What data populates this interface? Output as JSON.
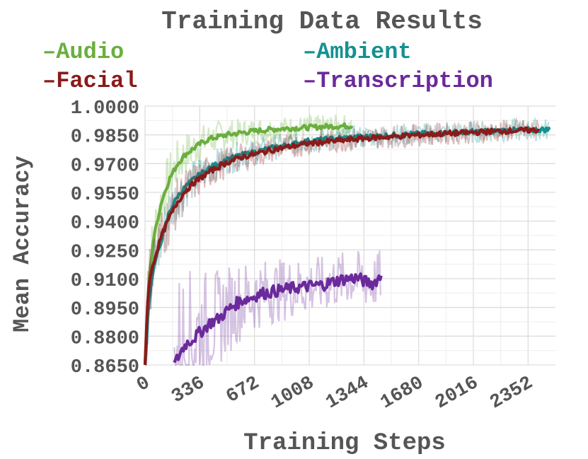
{
  "chart_data": {
    "type": "line",
    "title": "Training Data Results",
    "xlabel": "Training Steps",
    "ylabel": "Mean Accuracy",
    "xlim": [
      0,
      2520
    ],
    "ylim": [
      0.865,
      1.0
    ],
    "xticks": [
      0,
      336,
      672,
      1008,
      1344,
      1680,
      2016,
      2352
    ],
    "xtick_labels": [
      "0",
      "336",
      "672",
      "1008",
      "1344",
      "1680",
      "2016",
      "2352"
    ],
    "yticks": [
      1.0,
      0.985,
      0.97,
      0.955,
      0.94,
      0.925,
      0.91,
      0.895,
      0.88,
      0.865
    ],
    "ytick_labels": [
      "1.0000",
      "0.9850",
      "0.9700",
      "0.9550",
      "0.9400",
      "0.9250",
      "0.9100",
      "0.8950",
      "0.8800",
      "0.8650"
    ],
    "grid": true,
    "legend_position": "top, two columns",
    "series": [
      {
        "name": "Audio",
        "color": "#6aaf3d",
        "x": [
          0,
          20,
          50,
          100,
          150,
          200,
          250,
          300,
          350,
          400,
          450,
          500,
          600,
          700,
          800,
          900,
          1000,
          1100,
          1200,
          1270
        ],
        "y": [
          0.865,
          0.905,
          0.93,
          0.95,
          0.962,
          0.97,
          0.975,
          0.978,
          0.981,
          0.983,
          0.984,
          0.985,
          0.9862,
          0.9872,
          0.988,
          0.9885,
          0.9888,
          0.9893,
          0.9896,
          0.9897
        ]
      },
      {
        "name": "Ambient",
        "color": "#14918f",
        "x": [
          0,
          20,
          50,
          100,
          150,
          200,
          250,
          300,
          400,
          500,
          600,
          700,
          800,
          900,
          1000,
          1200,
          1400,
          1600,
          1800,
          2000,
          2200,
          2400,
          2480
        ],
        "y": [
          0.865,
          0.895,
          0.915,
          0.93,
          0.945,
          0.953,
          0.958,
          0.962,
          0.968,
          0.972,
          0.9745,
          0.9765,
          0.9785,
          0.98,
          0.9818,
          0.9832,
          0.9842,
          0.9852,
          0.9858,
          0.9865,
          0.9872,
          0.9876,
          0.9878
        ]
      },
      {
        "name": "Facial",
        "color": "#8b1a1a",
        "x": [
          0,
          20,
          50,
          100,
          150,
          200,
          250,
          300,
          400,
          500,
          600,
          700,
          800,
          900,
          1000,
          1200,
          1400,
          1600,
          1800,
          2000,
          2200,
          2400,
          2420
        ],
        "y": [
          0.865,
          0.905,
          0.918,
          0.932,
          0.942,
          0.95,
          0.956,
          0.96,
          0.966,
          0.9705,
          0.9735,
          0.9755,
          0.9775,
          0.979,
          0.9805,
          0.982,
          0.9835,
          0.9845,
          0.9855,
          0.9862,
          0.987,
          0.9875,
          0.9872
        ]
      },
      {
        "name": "Transcription",
        "color": "#6b2a9c",
        "x": [
          180,
          220,
          250,
          300,
          350,
          400,
          450,
          500,
          550,
          600,
          650,
          700,
          800,
          900,
          1000,
          1100,
          1200,
          1300,
          1350,
          1400,
          1450
        ],
        "y": [
          0.865,
          0.872,
          0.876,
          0.879,
          0.883,
          0.887,
          0.889,
          0.893,
          0.8965,
          0.899,
          0.9,
          0.902,
          0.9035,
          0.905,
          0.906,
          0.907,
          0.9095,
          0.9105,
          0.9085,
          0.9075,
          0.9115
        ]
      }
    ]
  }
}
